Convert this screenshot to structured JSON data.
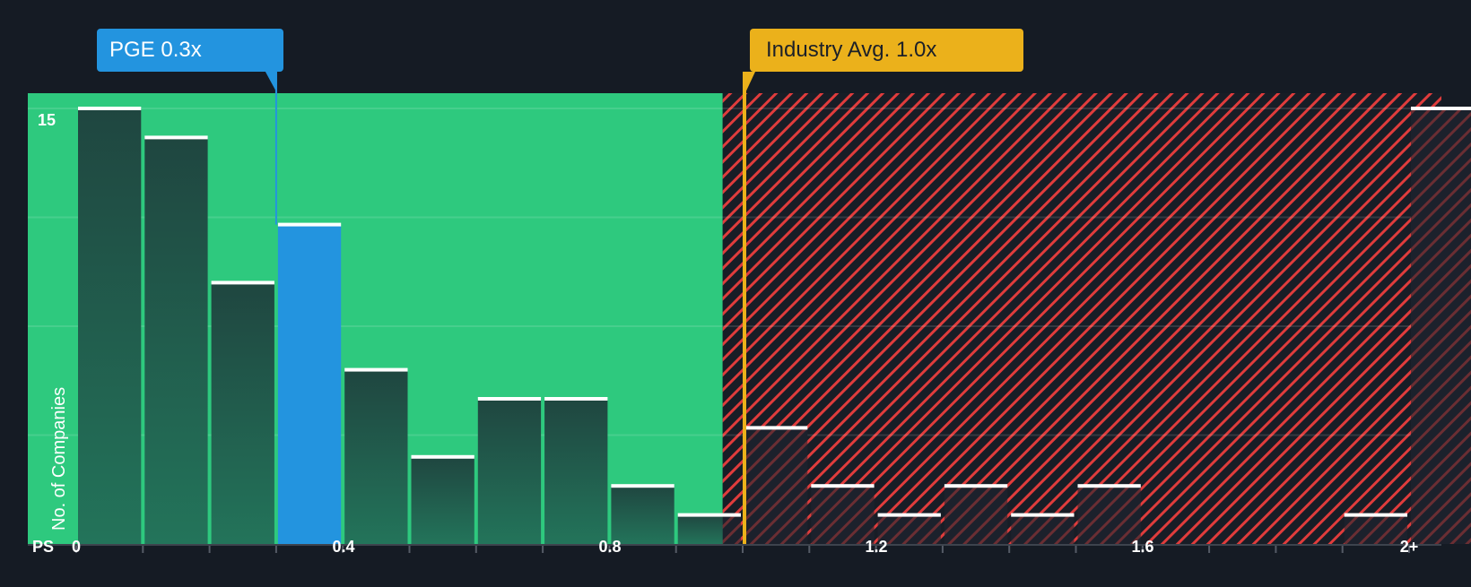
{
  "chart_data": {
    "type": "bar",
    "title": "",
    "xlabel": "PS",
    "ylabel": "No. of Companies",
    "x_tick_labels": [
      "0",
      "0.4",
      "0.8",
      "1.2",
      "1.6",
      "2+"
    ],
    "y_tick_labels": [
      "15"
    ],
    "ylim": [
      0,
      15
    ],
    "grid": true,
    "bins": [
      "0-0.1",
      "0.1-0.2",
      "0.2-0.3",
      "0.3-0.4",
      "0.4-0.5",
      "0.5-0.6",
      "0.6-0.7",
      "0.7-0.8",
      "0.8-0.9",
      "0.9-1.0",
      "1.0-1.1",
      "1.1-1.2",
      "1.2-1.3",
      "1.3-1.4",
      "1.4-1.5",
      "1.5-1.6",
      "1.6-1.7",
      "1.7-1.8",
      "1.8-1.9",
      "1.9-2.0",
      "2+"
    ],
    "values": [
      15,
      14,
      9,
      11,
      6,
      3,
      5,
      5,
      2,
      1,
      4,
      2,
      1,
      2,
      1,
      2,
      0,
      0,
      0,
      1,
      15
    ],
    "highlight_bin_index": 3,
    "annotations": [
      {
        "label": "PGE 0.3x",
        "value": 0.3,
        "color": "#2394df"
      },
      {
        "label": "Industry Avg. 1.0x",
        "value": 1.0,
        "color": "#ebb11b"
      }
    ],
    "regions": [
      {
        "name": "below-average",
        "from": 0,
        "to": 0.97,
        "color": "#2ec97e"
      },
      {
        "name": "above-average",
        "from": 0.97,
        "to": 2.1,
        "color": "#e03c3c",
        "pattern": "diagonal-hatch"
      }
    ]
  },
  "callouts": {
    "company": "PGE 0.3x",
    "industry": "Industry Avg. 1.0x"
  },
  "axis": {
    "y_max_label": "15",
    "y_title": "No. of Companies",
    "x_title": "PS",
    "x_ticks": [
      "0",
      "0.4",
      "0.8",
      "1.2",
      "1.6",
      "2+"
    ]
  },
  "colors": {
    "background": "#151b24",
    "green_zone": "#2ec97e",
    "hatch_red": "#e03c3c",
    "company_bar": "#2394df",
    "industry_line": "#ebb11b",
    "bar_dark": "#1f4a40"
  }
}
